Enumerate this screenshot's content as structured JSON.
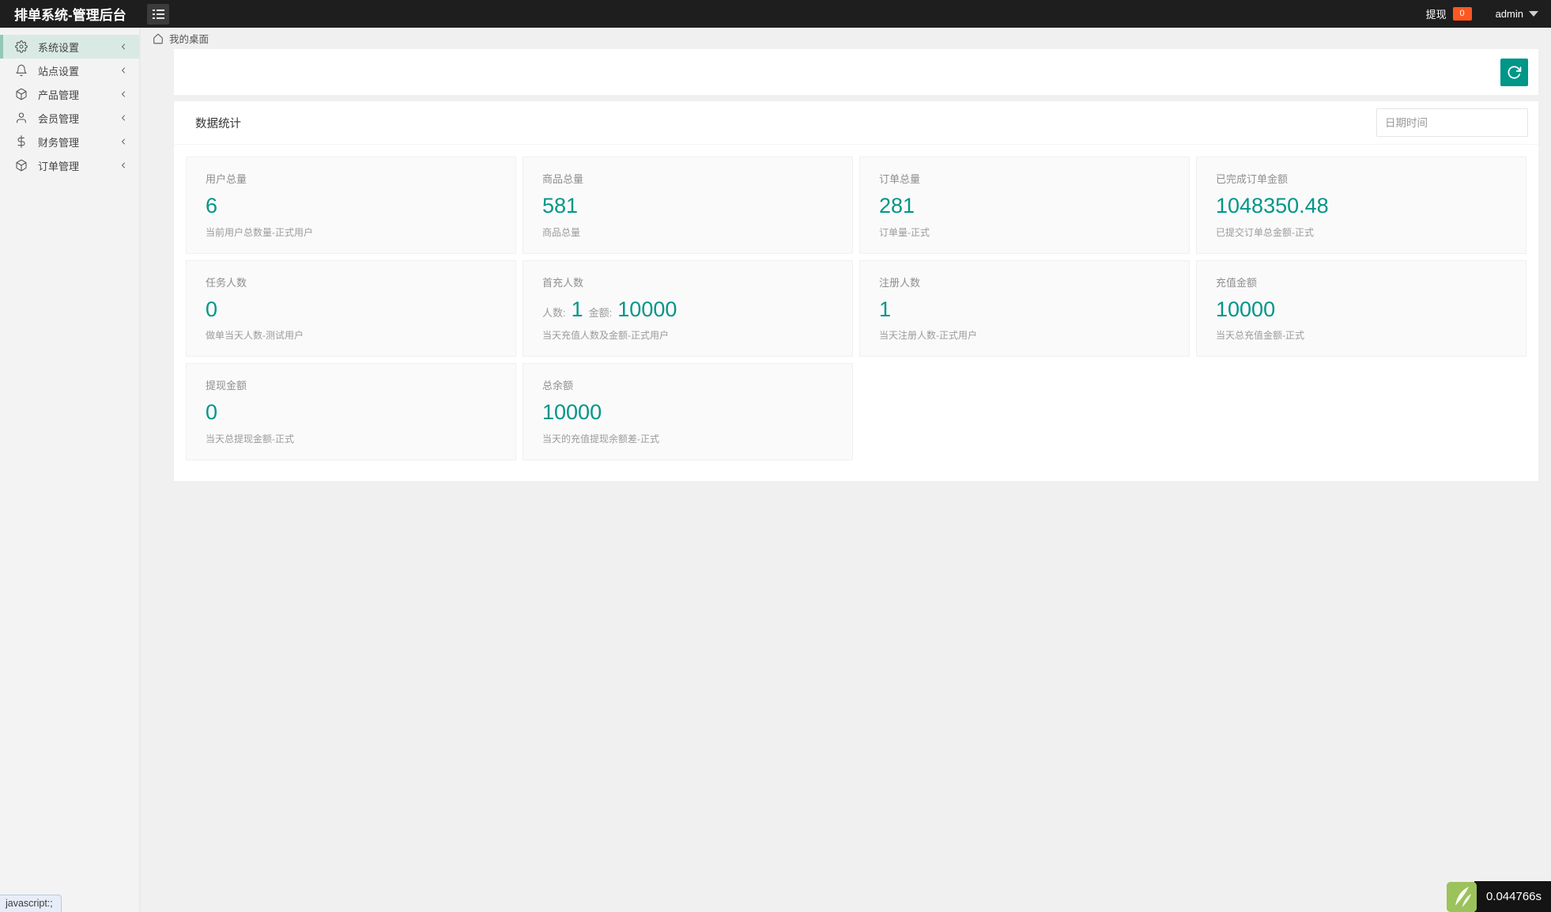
{
  "header": {
    "title": "排单系统-管理后台",
    "withdraw_label": "提现",
    "withdraw_badge": "0",
    "username": "admin"
  },
  "sidebar": {
    "items": [
      {
        "id": "system-settings",
        "icon": "gear-icon",
        "label": "系统设置",
        "active": true
      },
      {
        "id": "site-settings",
        "icon": "bell-icon",
        "label": "站点设置",
        "active": false
      },
      {
        "id": "product-management",
        "icon": "cube-icon",
        "label": "产品管理",
        "active": false
      },
      {
        "id": "member-management",
        "icon": "user-icon",
        "label": "会员管理",
        "active": false
      },
      {
        "id": "finance-management",
        "icon": "dollar-icon",
        "label": "财务管理",
        "active": false
      },
      {
        "id": "order-management",
        "icon": "cube-icon",
        "label": "订单管理",
        "active": false
      }
    ]
  },
  "breadcrumb": {
    "home_label": "我的桌面"
  },
  "panel": {
    "title": "数据统计",
    "date_placeholder": "日期时间",
    "cards": [
      {
        "title": "用户总量",
        "value": "6",
        "desc": "当前用户总数量-正式用户"
      },
      {
        "title": "商品总量",
        "value": "581",
        "desc": "商品总量"
      },
      {
        "title": "订单总量",
        "value": "281",
        "desc": "订单量-正式"
      },
      {
        "title": "已完成订单金额",
        "value": "1048350.48",
        "desc": "已提交订单总金额-正式"
      },
      {
        "title": "任务人数",
        "value": "0",
        "desc": "做单当天人数-测试用户"
      },
      {
        "title": "首充人数",
        "parts": [
          {
            "label": "人数:",
            "value": "1"
          },
          {
            "label": "金额:",
            "value": "10000"
          }
        ],
        "desc": "当天充值人数及金额-正式用户"
      },
      {
        "title": "注册人数",
        "value": "1",
        "desc": "当天注册人数-正式用户"
      },
      {
        "title": "充值金额",
        "value": "10000",
        "desc": "当天总充值金额-正式"
      },
      {
        "title": "提现金额",
        "value": "0",
        "desc": "当天总提现金额-正式"
      },
      {
        "title": "总余额",
        "value": "10000",
        "desc": "当天的充值提现余额差-正式"
      }
    ]
  },
  "statusbar": {
    "link_preview": "javascript:;"
  },
  "trace": {
    "time": "0.044766s"
  },
  "colors": {
    "accent": "#009688",
    "badge": "#FF5722",
    "header_bg": "#1E1E1E",
    "active_bg": "#D9EAE4",
    "active_strip": "#94C7B8",
    "trace_green": "#9CC25C"
  }
}
